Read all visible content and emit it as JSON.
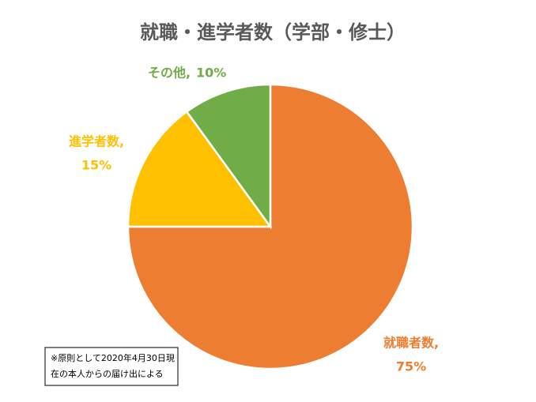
{
  "chart_data": {
    "type": "pie",
    "title": "就職・進学者数（学部・修士）",
    "categories": [
      "就職者数,",
      "進学者数,",
      "その他,"
    ],
    "values": [
      75,
      15,
      10
    ],
    "value_labels": [
      "75%",
      "15%",
      "10%"
    ],
    "colors": [
      "#ED7D31",
      "#FFC000",
      "#70AD47"
    ],
    "note": [
      "※原則として2020年4月30日現",
      "在の本人からの届け出による"
    ]
  }
}
